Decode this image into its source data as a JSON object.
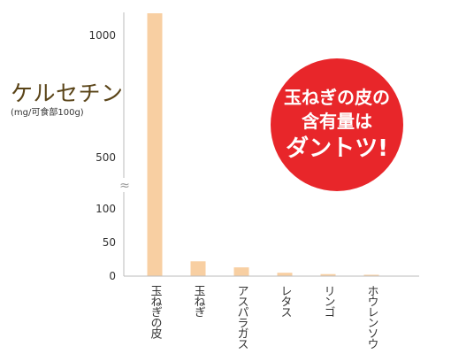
{
  "chart_data": {
    "type": "bar",
    "ylabel": "ケルセチン",
    "ylabel_unit": "(mg/可食部100g)",
    "categories": [
      "玉ねぎの皮",
      "玉ねぎ",
      "アスパラガス",
      "レタス",
      "リンゴ",
      "ホウレンソウ"
    ],
    "values": [
      1200,
      22,
      13,
      5,
      3,
      2
    ],
    "y_ticks": [
      "0",
      "50",
      "100",
      "500",
      "1000"
    ],
    "axis_break": "≈",
    "grid": false,
    "bar_color": "#f8cfa2"
  },
  "callout": {
    "lines": [
      "玉ねぎの皮の",
      "含有量は",
      "ダントツ!"
    ],
    "color": "#e8262a"
  }
}
